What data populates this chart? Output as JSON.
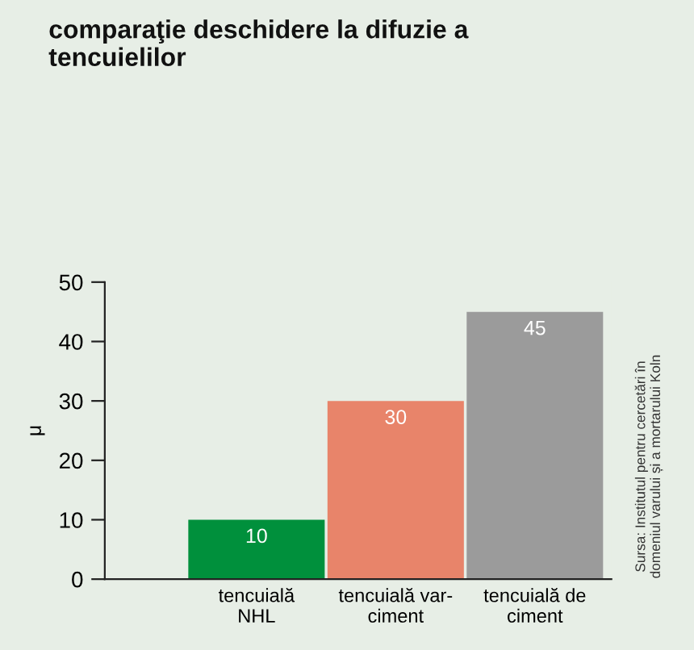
{
  "chart_data": {
    "type": "bar",
    "title": "comparaţie deschidere la difuzie a\ntencuielilor",
    "ylabel": "μ",
    "categories": [
      "tencuială\nNHL",
      "tencuială var-\nciment",
      "tencuială de\nciment"
    ],
    "values": [
      10,
      30,
      45
    ],
    "colors": [
      "#00903c",
      "#e8846a",
      "#9b9b9b"
    ],
    "ylim": [
      0,
      50
    ],
    "yticks": [
      0,
      10,
      20,
      30,
      40,
      50
    ],
    "grid": false,
    "data_labels": true,
    "annotations": [
      "Sursa: Institutul pentru cercetări în\ndomeniul varului și a mortarului Koln"
    ]
  }
}
